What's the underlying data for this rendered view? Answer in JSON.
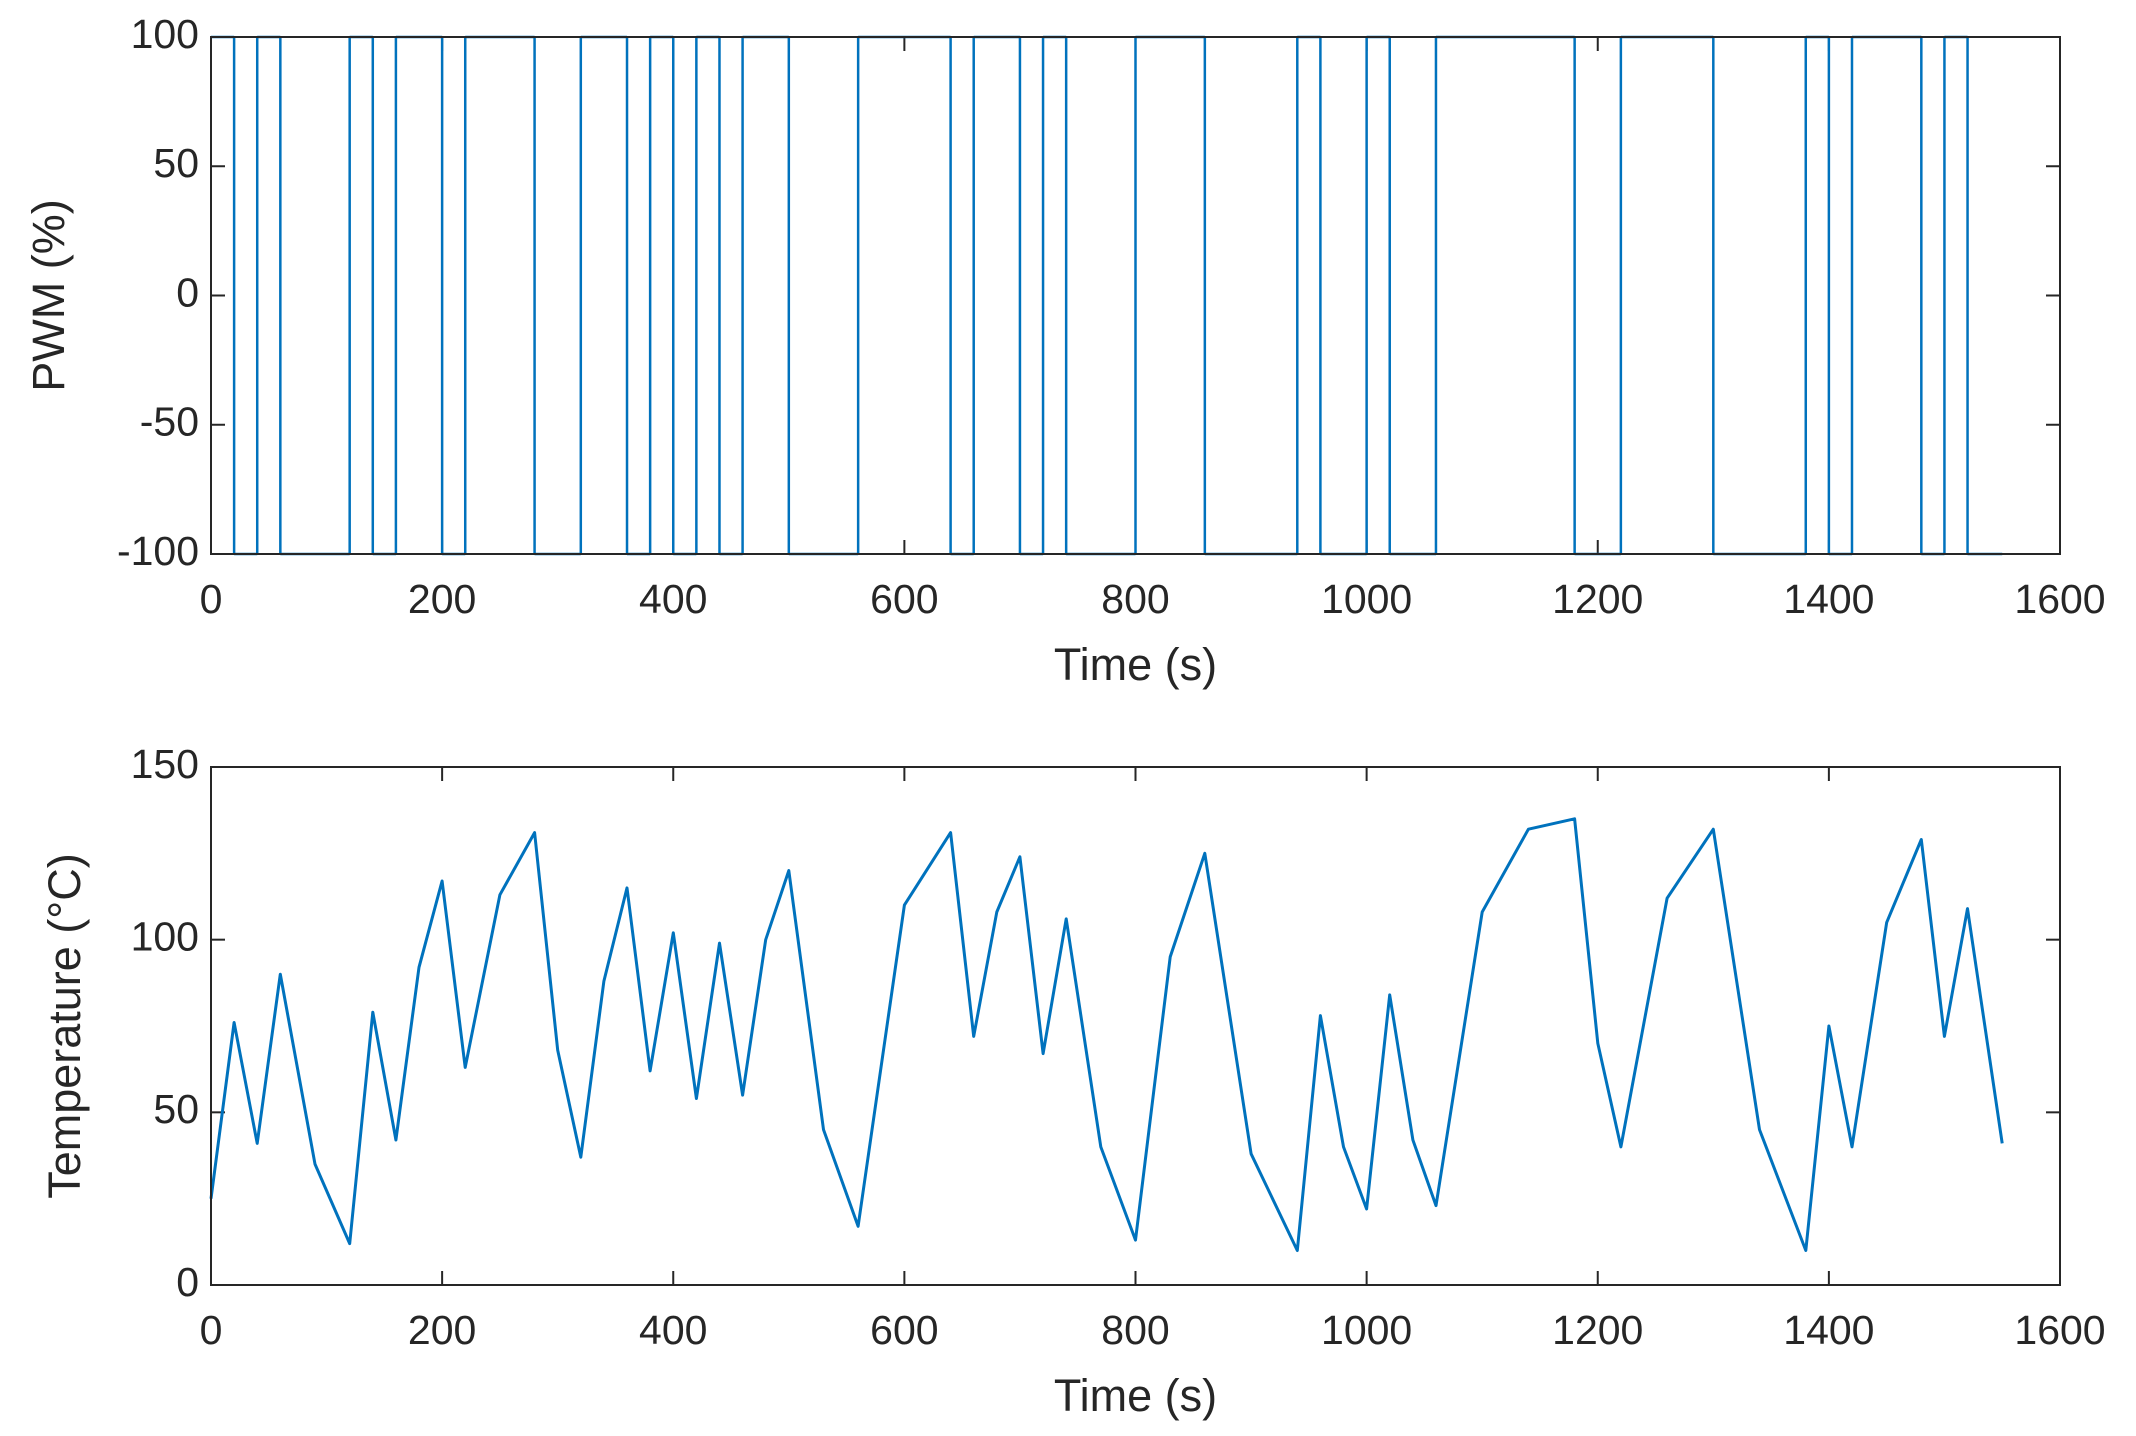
{
  "chart_data": [
    {
      "type": "line",
      "drawstyle": "steps-post",
      "xlabel": "Time (s)",
      "ylabel": "PWM (%)",
      "xlim": [
        0,
        1600
      ],
      "xticks": [
        0,
        200,
        400,
        600,
        800,
        1000,
        1200,
        1400,
        1600
      ],
      "ylim": [
        -100,
        100
      ],
      "yticks": [
        -100,
        -50,
        0,
        50,
        100
      ],
      "x": [
        0,
        20,
        40,
        60,
        120,
        140,
        160,
        200,
        220,
        280,
        320,
        360,
        380,
        400,
        420,
        440,
        460,
        500,
        560,
        640,
        660,
        700,
        720,
        740,
        800,
        860,
        940,
        960,
        1000,
        1020,
        1060,
        1180,
        1220,
        1300,
        1380,
        1400,
        1420,
        1480,
        1500,
        1520,
        1550
      ],
      "series": [
        {
          "color": "#0072bd",
          "values": [
            100,
            -100,
            100,
            -100,
            100,
            -100,
            100,
            -100,
            100,
            -100,
            100,
            -100,
            100,
            -100,
            100,
            -100,
            100,
            -100,
            100,
            -100,
            100,
            -100,
            100,
            -100,
            100,
            -100,
            100,
            -100,
            100,
            -100,
            100,
            -100,
            100,
            -100,
            100,
            -100,
            100,
            -100,
            100,
            -100,
            -100
          ]
        }
      ]
    },
    {
      "type": "line",
      "xlabel": "Time (s)",
      "ylabel": "Temperature (°C)",
      "xlim": [
        0,
        1600
      ],
      "xticks": [
        0,
        200,
        400,
        600,
        800,
        1000,
        1200,
        1400,
        1600
      ],
      "ylim": [
        0,
        150
      ],
      "yticks": [
        0,
        50,
        100,
        150
      ],
      "x": [
        0,
        20,
        40,
        60,
        90,
        120,
        140,
        160,
        180,
        200,
        220,
        250,
        280,
        300,
        320,
        340,
        360,
        380,
        400,
        420,
        440,
        460,
        480,
        500,
        530,
        560,
        600,
        640,
        660,
        680,
        700,
        720,
        740,
        770,
        800,
        830,
        860,
        900,
        940,
        960,
        980,
        1000,
        1020,
        1040,
        1060,
        1100,
        1140,
        1180,
        1200,
        1220,
        1260,
        1300,
        1340,
        1380,
        1400,
        1420,
        1450,
        1480,
        1500,
        1520,
        1550
      ],
      "series": [
        {
          "color": "#0072bd",
          "values": [
            25,
            76,
            41,
            90,
            35,
            12,
            79,
            42,
            92,
            117,
            63,
            113,
            131,
            68,
            37,
            88,
            115,
            62,
            102,
            54,
            99,
            55,
            100,
            120,
            45,
            17,
            110,
            131,
            72,
            108,
            124,
            67,
            106,
            40,
            13,
            95,
            125,
            38,
            10,
            78,
            40,
            22,
            84,
            42,
            23,
            108,
            132,
            135,
            70,
            40,
            112,
            132,
            45,
            10,
            75,
            40,
            105,
            129,
            72,
            109,
            41
          ]
        }
      ]
    }
  ]
}
